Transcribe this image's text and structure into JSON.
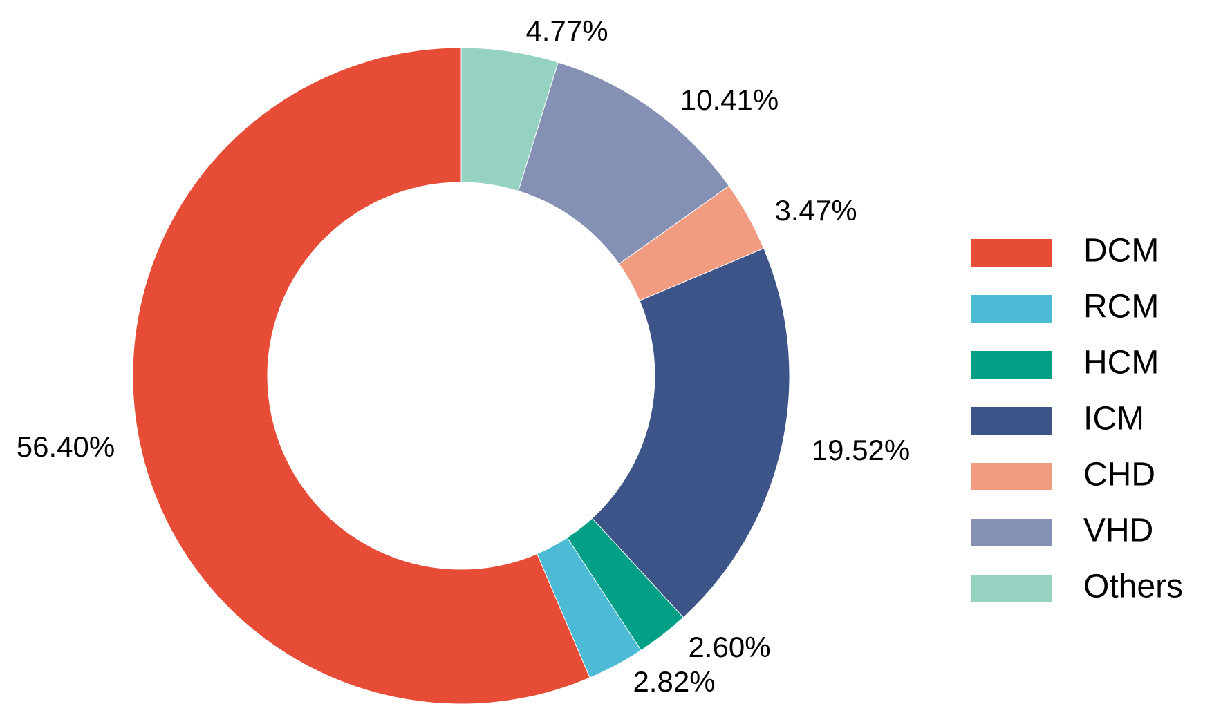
{
  "chart_data": {
    "type": "pie",
    "style": "donut",
    "start_angle_deg": 0,
    "direction": "clockwise",
    "legend_position": "right",
    "slices": [
      {
        "name": "Others",
        "value": 4.77,
        "label": "4.77%",
        "color": "#95D2C1"
      },
      {
        "name": "VHD",
        "value": 10.41,
        "label": "10.41%",
        "color": "#8591B4"
      },
      {
        "name": "CHD",
        "value": 3.47,
        "label": "3.47%",
        "color": "#F19C81"
      },
      {
        "name": "ICM",
        "value": 19.52,
        "label": "19.52%",
        "color": "#3D5488"
      },
      {
        "name": "HCM",
        "value": 2.6,
        "label": "2.60%",
        "color": "#009F86"
      },
      {
        "name": "RCM",
        "value": 2.82,
        "label": "2.82%",
        "color": "#4DBBD5"
      },
      {
        "name": "DCM",
        "value": 56.4,
        "label": "56.40%",
        "color": "#E64C36"
      }
    ],
    "legend": [
      {
        "name": "DCM",
        "color": "#E64C36"
      },
      {
        "name": "RCM",
        "color": "#4DBBD5"
      },
      {
        "name": "HCM",
        "color": "#009F86"
      },
      {
        "name": "ICM",
        "color": "#3D5488"
      },
      {
        "name": "CHD",
        "color": "#F19C81"
      },
      {
        "name": "VHD",
        "color": "#8591B4"
      },
      {
        "name": "Others",
        "color": "#95D2C1"
      }
    ]
  }
}
